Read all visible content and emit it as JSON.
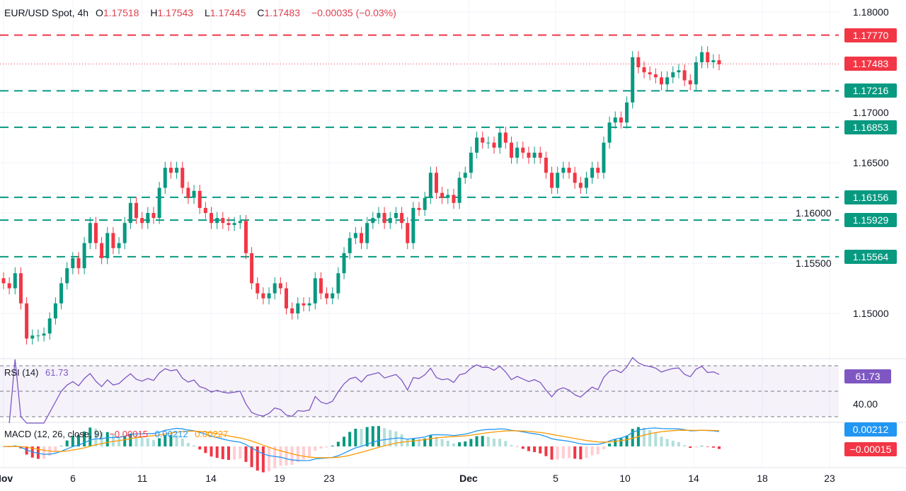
{
  "header": {
    "symbol": "EUR/USD Spot, 4h",
    "o_label": "O",
    "open": "1.17518",
    "h_label": "H",
    "high": "1.17543",
    "l_label": "L",
    "low": "1.17445",
    "c_label": "C",
    "close": "1.17483",
    "change": "−0.00035 (−0.03%)"
  },
  "colors": {
    "up": "#089981",
    "down": "#f23645",
    "rsi": "#7e57c2",
    "macd": "#2196f3",
    "signal": "#ff9800",
    "resistance": "#f23645",
    "support": "#089981"
  },
  "chart_data": [
    {
      "type": "candlestick",
      "title": "EUR/USD Spot, 4h",
      "ylim": [
        1.1455,
        1.1812
      ],
      "y_ticks": [
        "1.18000",
        "1.17000",
        "1.16500",
        "1.16000",
        "1.15500",
        "1.15000"
      ],
      "x_ticks": [
        "Nov",
        "6",
        "11",
        "14",
        "19",
        "23",
        "Dec",
        "5",
        "10",
        "14",
        "18",
        "23"
      ],
      "close": [
        1.153,
        1.1525,
        1.154,
        1.151,
        1.1475,
        1.1478,
        1.1478,
        1.148,
        1.1495,
        1.151,
        1.153,
        1.1545,
        1.1555,
        1.1545,
        1.157,
        1.159,
        1.157,
        1.1555,
        1.158,
        1.1565,
        1.157,
        1.159,
        1.161,
        1.1595,
        1.159,
        1.16,
        1.1595,
        1.1625,
        1.1645,
        1.164,
        1.1645,
        1.1625,
        1.1615,
        1.1622,
        1.1605,
        1.16,
        1.159,
        1.1595,
        1.159,
        1.1588,
        1.159,
        1.1592,
        1.156,
        1.153,
        1.152,
        1.1515,
        1.152,
        1.153,
        1.1525,
        1.1505,
        1.15,
        1.151,
        1.1508,
        1.151,
        1.1535,
        1.152,
        1.1515,
        1.152,
        1.154,
        1.156,
        1.1575,
        1.158,
        1.157,
        1.159,
        1.1595,
        1.16,
        1.159,
        1.1595,
        1.16,
        1.159,
        1.157,
        1.1605,
        1.1603,
        1.1615,
        1.164,
        1.162,
        1.1615,
        1.1618,
        1.161,
        1.1635,
        1.164,
        1.166,
        1.1675,
        1.167,
        1.167,
        1.1665,
        1.168,
        1.167,
        1.1655,
        1.1665,
        1.166,
        1.1655,
        1.166,
        1.1655,
        1.164,
        1.1625,
        1.164,
        1.1645,
        1.164,
        1.163,
        1.1625,
        1.1635,
        1.1645,
        1.164,
        1.167,
        1.169,
        1.1695,
        1.169,
        1.171,
        1.1755,
        1.1745,
        1.174,
        1.1738,
        1.1735,
        1.1728,
        1.1735,
        1.174,
        1.1742,
        1.1732,
        1.1728,
        1.175,
        1.176,
        1.175,
        1.1752,
        1.1748
      ],
      "levels": [
        {
          "value": "1.17770",
          "kind": "resistance"
        },
        {
          "value": "1.17483",
          "kind": "last-price"
        },
        {
          "value": "1.17216",
          "kind": "support"
        },
        {
          "value": "1.16853",
          "kind": "support"
        },
        {
          "value": "1.16156",
          "kind": "support"
        },
        {
          "value": "1.15929",
          "kind": "support"
        },
        {
          "value": "1.15564",
          "kind": "support"
        }
      ]
    },
    {
      "type": "line",
      "title": "RSI (14)",
      "value": "61.73",
      "ylim": [
        30,
        70
      ],
      "y_tick": "40.00",
      "bands": [
        70,
        50,
        30
      ]
    },
    {
      "type": "line+bar",
      "title": "MACD (12, 26, close, 9)",
      "histogram": "−0.00015",
      "macd": "0.00212",
      "signal": "0.00227",
      "macd_tag": "0.00212",
      "hist_tag": "−0.00015"
    }
  ]
}
